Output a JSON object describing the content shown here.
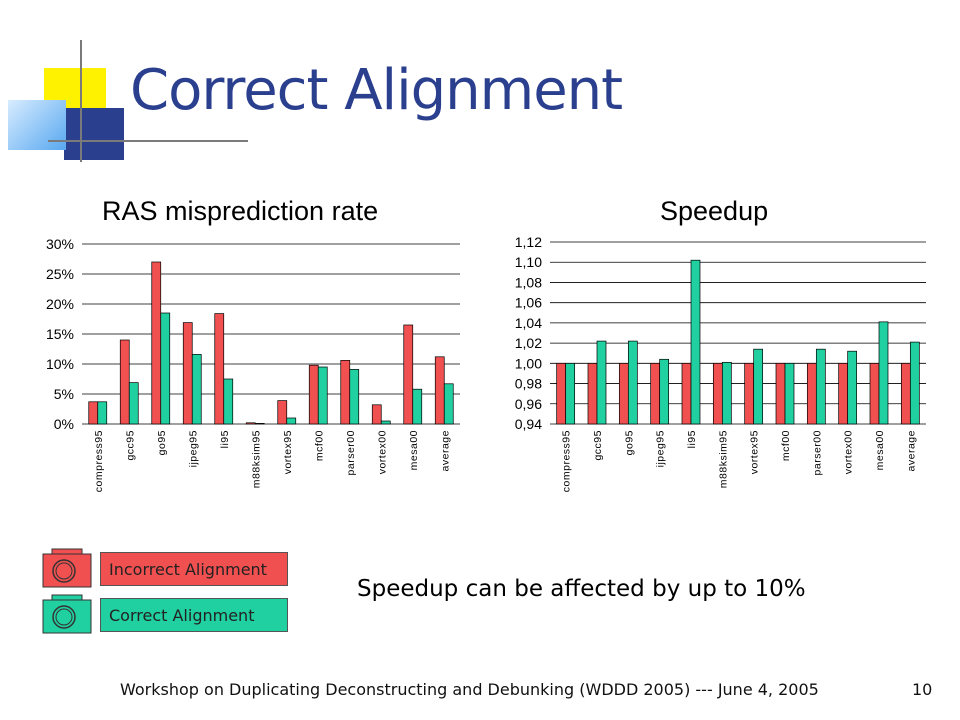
{
  "slide": {
    "title": "Correct Alignment",
    "note": "Speedup can be affected by up to 10%",
    "footer": "Workshop on Duplicating Deconstructing and Debunking (WDDD 2005) --- June 4, 2005",
    "slide_number": "10"
  },
  "legend": {
    "items": [
      {
        "label": "Incorrect Alignment",
        "color": "#f05050"
      },
      {
        "label": "Correct Alignment",
        "color": "#20d0a0"
      }
    ]
  },
  "colors": {
    "incorrect": "#f05050",
    "correct": "#20d0a0",
    "title": "#2b3f8f"
  },
  "chart_data": [
    {
      "type": "bar",
      "title": "RAS misprediction rate",
      "xlabel": "",
      "ylabel": "",
      "ylim": [
        0,
        30
      ],
      "yticks": [
        "0%",
        "5%",
        "10%",
        "15%",
        "20%",
        "25%",
        "30%"
      ],
      "grid": true,
      "categories": [
        "compress95",
        "gcc95",
        "go95",
        "ijpeg95",
        "li95",
        "m88ksim95",
        "vortex95",
        "mcf00",
        "parser00",
        "vortex00",
        "mesa00",
        "average"
      ],
      "series": [
        {
          "name": "Incorrect Alignment",
          "values": [
            3.7,
            14.0,
            27.0,
            16.9,
            18.4,
            0.2,
            3.9,
            9.8,
            10.6,
            3.2,
            16.5,
            11.2
          ]
        },
        {
          "name": "Correct Alignment",
          "values": [
            3.7,
            6.9,
            18.5,
            11.6,
            7.5,
            0.1,
            1.0,
            9.5,
            9.1,
            0.5,
            5.8,
            6.7
          ]
        }
      ]
    },
    {
      "type": "bar",
      "title": "Speedup",
      "xlabel": "",
      "ylabel": "",
      "ylim": [
        0.94,
        1.12
      ],
      "yticks": [
        "0,94",
        "0,96",
        "0,98",
        "1,00",
        "1,02",
        "1,04",
        "1,06",
        "1,08",
        "1,10",
        "1,12"
      ],
      "grid": true,
      "categories": [
        "compress95",
        "gcc95",
        "go95",
        "ijpeg95",
        "li95",
        "m88ksim95",
        "vortex95",
        "mcf00",
        "parser00",
        "vortex00",
        "mesa00",
        "average"
      ],
      "series": [
        {
          "name": "Incorrect Alignment",
          "values": [
            1.0,
            1.0,
            1.0,
            1.0,
            1.0,
            1.0,
            1.0,
            1.0,
            1.0,
            1.0,
            1.0,
            1.0
          ]
        },
        {
          "name": "Correct Alignment",
          "values": [
            1.0,
            1.022,
            1.022,
            1.004,
            1.102,
            1.001,
            1.014,
            1.0,
            1.014,
            1.012,
            1.041,
            1.021
          ]
        }
      ]
    }
  ]
}
